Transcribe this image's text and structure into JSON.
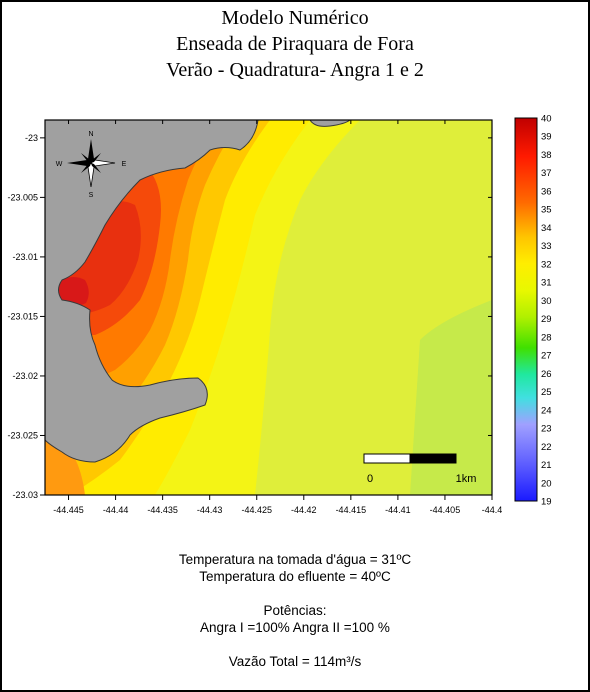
{
  "title": {
    "line1": "Modelo Numérico",
    "line2": "Enseada de Piraquara de Fora",
    "line3": "Verão - Quadratura- Angra 1 e 2"
  },
  "map": {
    "x_ticks": [
      "-44.445",
      "-44.44",
      "-44.435",
      "-44.43",
      "-44.425",
      "-44.42",
      "-44.415",
      "-44.41",
      "-44.405",
      "-44.4"
    ],
    "y_ticks": [
      "-23",
      "-23.005",
      "-23.01",
      "-23.015",
      "-23.02",
      "-23.025",
      "-23.03"
    ],
    "x_range": [
      -44.4475,
      -44.4
    ],
    "y_range": [
      -23.03,
      -22.9985
    ],
    "land_color": "#a0a0a0",
    "scale_bar": {
      "start_label": "0",
      "end_label": "1km"
    },
    "compass": {
      "n": "N",
      "s": "S",
      "e": "E",
      "w": "W"
    }
  },
  "colorbar": {
    "min": 19,
    "max": 40,
    "labels": [
      "40",
      "39",
      "38",
      "37",
      "36",
      "35",
      "34",
      "33",
      "32",
      "31",
      "30",
      "29",
      "28",
      "27",
      "26",
      "25",
      "24",
      "23",
      "22",
      "21",
      "20",
      "19"
    ],
    "colors": [
      "#ff0000",
      "#ff6600",
      "#ffcc00",
      "#ffff00",
      "#ccff00",
      "#00ff00",
      "#00ffcc",
      "#9999ff",
      "#0000ff"
    ]
  },
  "info": {
    "line1": "Temperatura na tomada d'água = 31ºC",
    "line2": "Temperatura do efluente = 40ºC",
    "line3": "Potências:",
    "line4": "Angra I =100%  Angra II =100 %",
    "line5": "Vazão Total = 114m³/s"
  }
}
